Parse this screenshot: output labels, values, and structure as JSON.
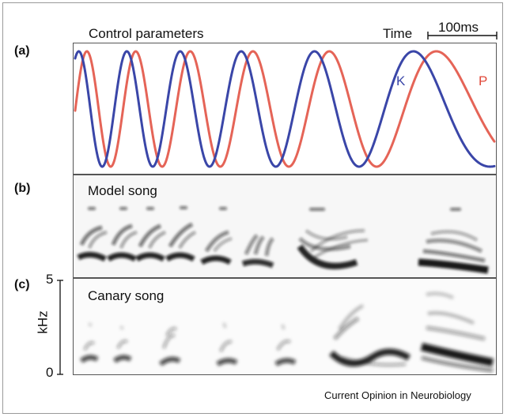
{
  "panels": {
    "a": {
      "label": "(a)",
      "title": "Control parameters"
    },
    "b": {
      "label": "(b)",
      "title": "Model song"
    },
    "c": {
      "label": "(c)",
      "title": "Canary song"
    }
  },
  "time_label": "Time",
  "scale_bar_label": "100ms",
  "legend": {
    "k": "K",
    "p": "P"
  },
  "colors": {
    "k": "#3a46a8",
    "p": "#e0493a",
    "spectrogram": "#111111"
  },
  "freq_axis": {
    "top": "5",
    "bottom": "0",
    "unit": "kHz"
  },
  "credit": "Current Opinion in Neurobiology"
}
